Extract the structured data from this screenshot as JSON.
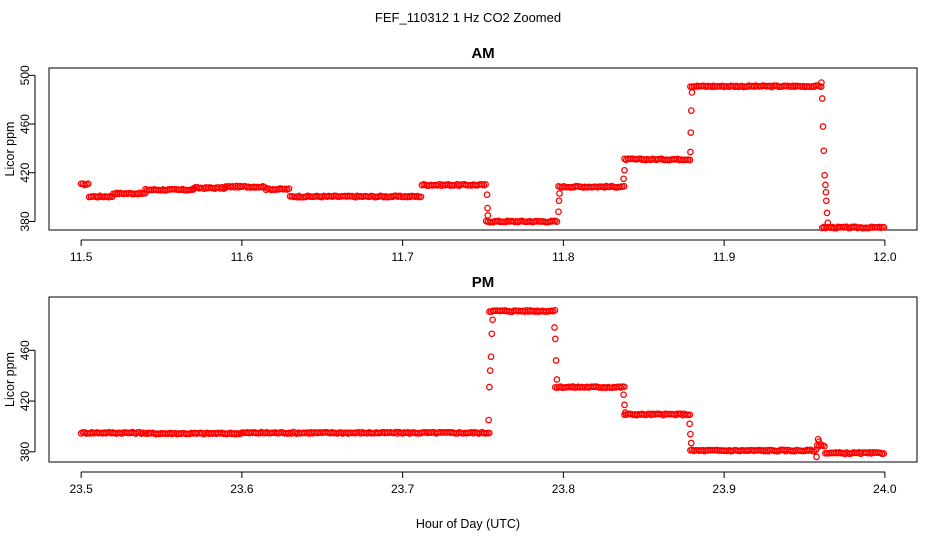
{
  "title": "FEF_110312  1 Hz CO2 Zoomed",
  "xlabel": "Hour of Day (UTC)",
  "colors": {
    "points": "#ff0000",
    "axis": "#000000",
    "background": "#ffffff"
  },
  "chart_data": [
    {
      "type": "scatter",
      "title": "AM",
      "ylabel": "Licor ppm",
      "xlim": [
        11.48,
        12.02
      ],
      "ylim": [
        373,
        506
      ],
      "x_ticks": [
        "11.5",
        "11.6",
        "11.7",
        "11.8",
        "11.9",
        "12.0"
      ],
      "x_tick_values": [
        11.5,
        11.6,
        11.7,
        11.8,
        11.9,
        12.0
      ],
      "y_ticks": [
        "380",
        "420",
        "460",
        "500"
      ],
      "y_tick_values": [
        380,
        420,
        460,
        500
      ],
      "marker": "open-circle",
      "grid": false,
      "levels": [
        [
          11.5,
          11.505,
          410.5
        ],
        [
          11.505,
          11.52,
          400.5
        ],
        [
          11.52,
          11.54,
          403
        ],
        [
          11.54,
          11.57,
          406
        ],
        [
          11.57,
          11.59,
          407.5
        ],
        [
          11.59,
          11.615,
          408.5
        ],
        [
          11.615,
          11.63,
          406.5
        ],
        [
          11.63,
          11.712,
          400.5
        ],
        [
          11.712,
          11.752,
          410
        ],
        [
          11.752,
          11.797,
          380
        ],
        [
          11.797,
          11.838,
          408.5
        ],
        [
          11.838,
          11.879,
          431
        ],
        [
          11.879,
          11.961,
          491
        ],
        [
          11.961,
          12.0,
          375
        ]
      ],
      "transitions": [
        [
          11.7525,
          402
        ],
        [
          11.7528,
          391
        ],
        [
          11.753,
          385
        ],
        [
          11.797,
          388
        ],
        [
          11.7973,
          397
        ],
        [
          11.7976,
          403
        ],
        [
          11.8375,
          415
        ],
        [
          11.838,
          422
        ],
        [
          11.879,
          437
        ],
        [
          11.8793,
          453
        ],
        [
          11.8796,
          471
        ],
        [
          11.88,
          486
        ],
        [
          11.9605,
          494
        ],
        [
          11.961,
          481
        ],
        [
          11.9615,
          458
        ],
        [
          11.962,
          438
        ],
        [
          11.9625,
          418
        ],
        [
          11.963,
          410
        ],
        [
          11.9633,
          404
        ],
        [
          11.9636,
          397
        ],
        [
          11.964,
          387
        ],
        [
          11.9645,
          379
        ]
      ]
    },
    {
      "type": "scatter",
      "title": "PM",
      "ylabel": "Licor ppm",
      "xlim": [
        23.48,
        24.02
      ],
      "ylim": [
        372,
        502
      ],
      "x_ticks": [
        "23.5",
        "23.6",
        "23.7",
        "23.8",
        "23.9",
        "24.0"
      ],
      "x_tick_values": [
        23.5,
        23.6,
        23.7,
        23.8,
        23.9,
        24.0
      ],
      "y_ticks": [
        "380",
        "420",
        "460"
      ],
      "y_tick_values": [
        380,
        420,
        460
      ],
      "marker": "open-circle",
      "grid": false,
      "levels": [
        [
          23.5,
          23.54,
          395
        ],
        [
          23.54,
          23.6,
          394.5
        ],
        [
          23.6,
          23.7,
          395
        ],
        [
          23.7,
          23.754,
          395
        ],
        [
          23.754,
          23.795,
          491
        ],
        [
          23.795,
          23.838,
          431
        ],
        [
          23.838,
          23.879,
          409.5
        ],
        [
          23.879,
          23.958,
          381
        ],
        [
          23.958,
          23.963,
          385
        ],
        [
          23.963,
          24.0,
          379
        ]
      ],
      "transitions": [
        [
          23.7535,
          405
        ],
        [
          23.754,
          431
        ],
        [
          23.7545,
          444
        ],
        [
          23.755,
          455
        ],
        [
          23.7555,
          473
        ],
        [
          23.756,
          484
        ],
        [
          23.7945,
          478
        ],
        [
          23.795,
          469
        ],
        [
          23.7955,
          452
        ],
        [
          23.796,
          437
        ],
        [
          23.8375,
          425
        ],
        [
          23.838,
          417
        ],
        [
          23.8385,
          411
        ],
        [
          23.8785,
          402
        ],
        [
          23.879,
          394
        ],
        [
          23.8795,
          387
        ],
        [
          23.9575,
          376
        ],
        [
          23.9585,
          390
        ],
        [
          23.959,
          388
        ]
      ]
    }
  ]
}
